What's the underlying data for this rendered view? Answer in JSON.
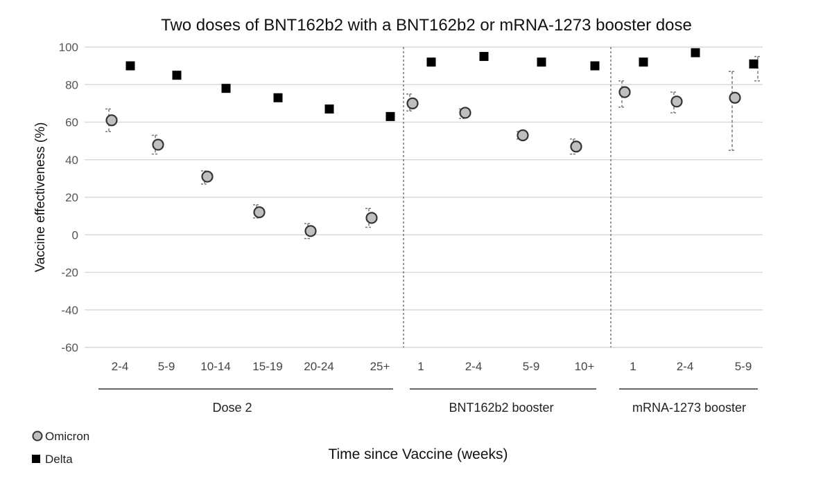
{
  "chart_data": {
    "type": "scatter",
    "title": "Two doses of BNT162b2 with a BNT162b2 or mRNA-1273 booster dose",
    "ylabel": "Vaccine effectiveness (%)",
    "xlabel": "Time since Vaccine (weeks)",
    "ylim": [
      -60,
      100
    ],
    "yticks": [
      100,
      80,
      60,
      40,
      20,
      0,
      -20,
      -40,
      -60
    ],
    "grid": true,
    "legend_position": "bottom-left",
    "categories": [
      "2-4",
      "5-9",
      "10-14",
      "15-19",
      "20-24",
      "25+",
      "1",
      "2-4",
      "5-9",
      "10+",
      "1",
      "2-4",
      "5-9"
    ],
    "groups": [
      {
        "label": "Dose 2",
        "start": 0,
        "end": 5
      },
      {
        "label": "BNT162b2 booster",
        "start": 6,
        "end": 9
      },
      {
        "label": "mRNA-1273 booster",
        "start": 10,
        "end": 12
      }
    ],
    "series": [
      {
        "name": "Omicron",
        "marker": "circle",
        "color": "#bfbfbf",
        "values": [
          61,
          48,
          31,
          12,
          2,
          9,
          70,
          65,
          53,
          47,
          76,
          71,
          73
        ],
        "ci_low": [
          55,
          43,
          27,
          9,
          -2,
          4,
          66,
          62,
          51,
          43,
          68,
          65,
          45
        ],
        "ci_high": [
          67,
          53,
          34,
          16,
          6,
          14,
          75,
          67,
          55,
          51,
          82,
          76,
          87
        ]
      },
      {
        "name": "Delta",
        "marker": "square",
        "color": "#000000",
        "values": [
          90,
          85,
          78,
          73,
          67,
          63,
          92,
          95,
          92,
          90,
          92,
          97,
          91
        ],
        "ci_low": [
          null,
          null,
          null,
          null,
          null,
          null,
          null,
          null,
          null,
          null,
          null,
          null,
          82
        ],
        "ci_high": [
          null,
          null,
          null,
          null,
          null,
          null,
          null,
          null,
          null,
          null,
          null,
          null,
          95
        ]
      }
    ]
  }
}
